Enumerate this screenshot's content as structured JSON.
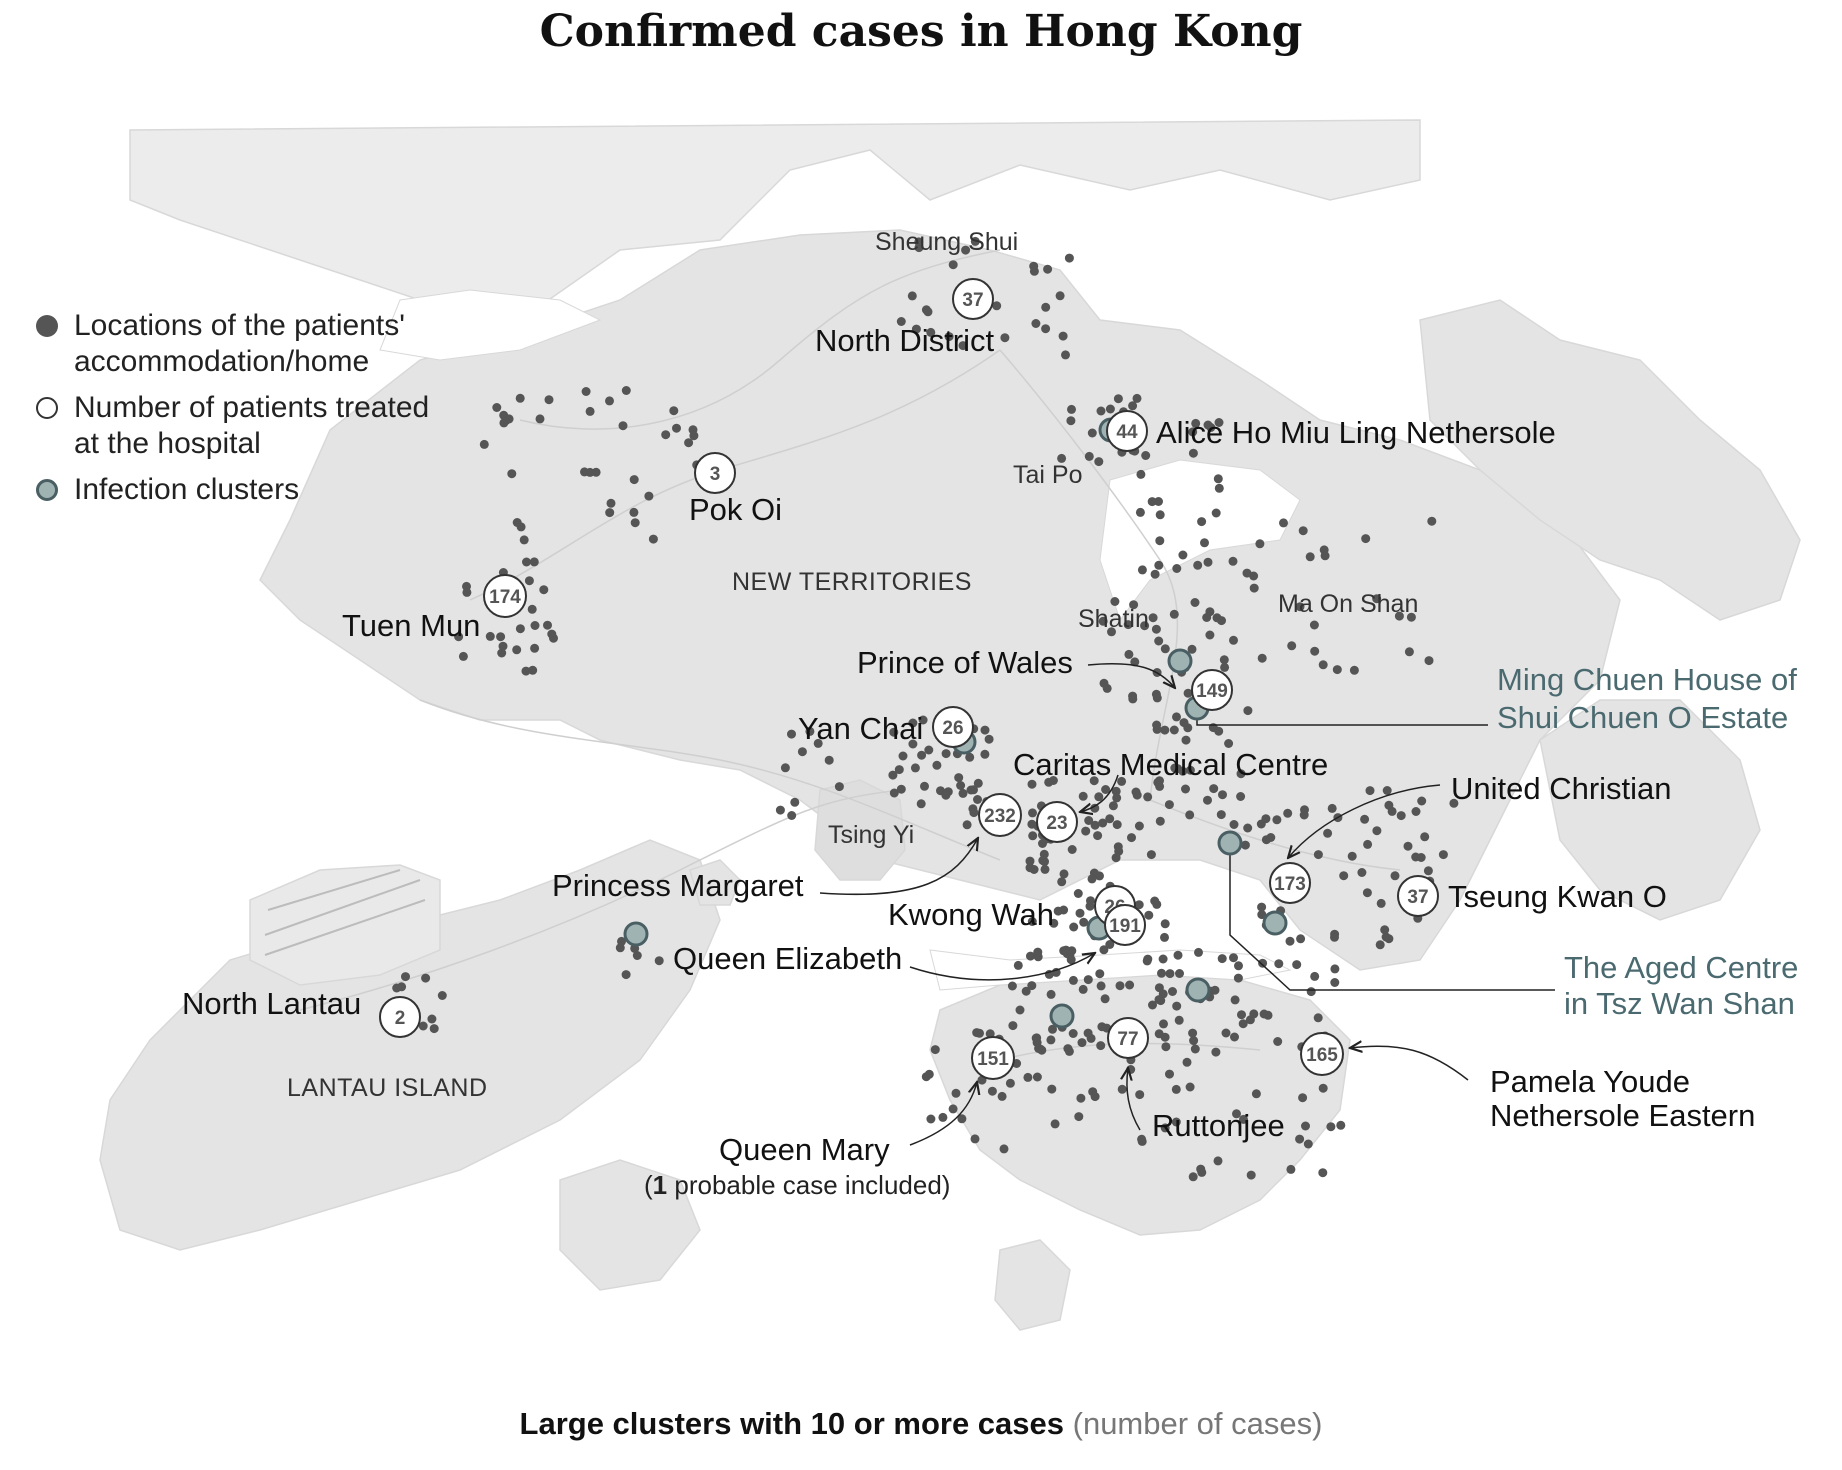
{
  "title": "Confirmed cases in Hong Kong",
  "colors": {
    "land": "#e4e4e4",
    "land_edge": "#d6d6d6",
    "home_dot": "#555555",
    "hospital_ring": "#333333",
    "cluster_fill": "#9fb3b3",
    "cluster_edge": "#4a5f63",
    "cluster_text": "#4a6a70"
  },
  "legend": {
    "home": "Locations of the patients' accommodation/home",
    "hospital": "Number of patients treated at the hospital",
    "cluster": "Infection clusters"
  },
  "regions": {
    "new_territories": "NEW TERRITORIES",
    "lantau": "LANTAU ISLAND"
  },
  "places": {
    "sheung_shui": "Sheung Shui",
    "tai_po": "Tai Po",
    "shatin": "Shatin",
    "ma_on_shan": "Ma On Shan",
    "tsing_yi": "Tsing Yi"
  },
  "hospitals": {
    "north_district": {
      "name": "North District",
      "count": "37"
    },
    "alice_ho": {
      "name": "Alice Ho Miu Ling Nethersole",
      "count": "44"
    },
    "pok_oi": {
      "name": "Pok Oi",
      "count": "3"
    },
    "tuen_mun": {
      "name": "Tuen Mun",
      "count": "174"
    },
    "prince_of_wales": {
      "name": "Prince of Wales",
      "count": "149"
    },
    "yan_chai": {
      "name": "Yan Chai",
      "count": "26"
    },
    "caritas": {
      "name": "Caritas Medical Centre",
      "count": "23"
    },
    "princess_margaret": {
      "name": "Princess Margaret",
      "count": "232"
    },
    "united_christian": {
      "name": "United Christian",
      "count": "173"
    },
    "tseung_kwan_o": {
      "name": "Tseung Kwan O",
      "count": "37"
    },
    "kwong_wah": {
      "name": "Kwong Wah",
      "count": "26"
    },
    "queen_elizabeth": {
      "name": "Queen Elizabeth",
      "count": "191"
    },
    "north_lantau": {
      "name": "North Lantau",
      "count": "2"
    },
    "queen_mary": {
      "name": "Queen Mary",
      "count": "151",
      "note_prefix": "(",
      "note_bold": "1",
      "note_rest": " probable case included)"
    },
    "ruttonjee": {
      "name": "Ruttonjee",
      "count": "77"
    },
    "pamela_youde": {
      "name_line1": "Pamela Youde",
      "name_line2": "Nethersole Eastern",
      "count": "165"
    }
  },
  "clusters": {
    "ming_chuen": {
      "line1": "Ming Chuen House of",
      "line2": "Shui Chuen O Estate"
    },
    "aged_centre": {
      "line1": "The Aged Centre",
      "line2": "in Tsz Wan Shan"
    }
  },
  "footer": {
    "bold": "Large clusters with 10 or more cases",
    "muted": "(number of cases)"
  }
}
